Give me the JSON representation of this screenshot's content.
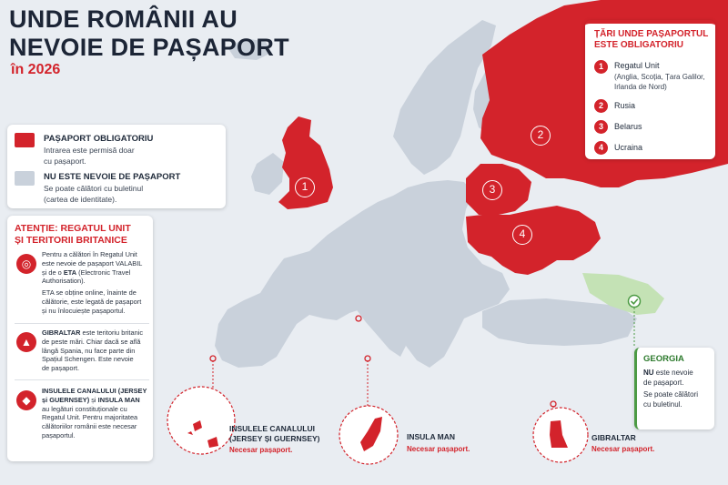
{
  "header": {
    "title_line1": "UNDE ROMÂNII AU",
    "title_line2": "NEVOIE DE PAȘAPORT",
    "year": "în 2026"
  },
  "colors": {
    "red": "#d3232b",
    "grey_land": "#c9d1db",
    "sea": "#e9edf2",
    "green": "#4c9a44"
  },
  "legend": {
    "required_title": "PAȘAPORT OBLIGATORIU",
    "required_desc_line1": "Intrarea este permisă doar",
    "required_desc_line2": "cu pașaport.",
    "not_needed_title": "NU ESTE NEVOIE DE PAȘAPORT",
    "not_needed_desc_line1": "Se poate călători cu buletinul",
    "not_needed_desc_line2": "(cartea de identitate)."
  },
  "attention": {
    "title_line1": "ATENȚIE: REGATUL UNIT",
    "title_line2": "ȘI TERITORII BRITANICE",
    "uk_icon": "passport-globe-icon",
    "uk_p1_line1": "Pentru a călători în Regatul Unit",
    "uk_p1_line2": "este nevoie de pașaport VALABIL",
    "uk_p1_line3": "și de o",
    "uk_p1_eta": "ETA",
    "uk_p1_line3b": "(Electronic Travel",
    "uk_p1_line4": "Authorisation).",
    "uk_p2_line1": "ETA se obține online, înainte de",
    "uk_p2_line2": "călătorie, este legată de pașaport",
    "uk_p2_line3": "și nu înlocuiește pașaportul.",
    "gib_icon": "rock-icon",
    "gib_bold": "GIBRALTAR",
    "gib_line1": "este teritoriu britanic",
    "gib_line2": "de peste mări. Chiar dacă se află",
    "gib_line3": "lângă Spania, nu face parte din",
    "gib_line4": "Spațiul Schengen. Este nevoie",
    "gib_line5": "de pașaport.",
    "ch_icon": "island-icon",
    "ch_bold1": "INSULELE CANALULUI (JERSEY",
    "ch_bold2": "și GUERNSEY)",
    "ch_and": "și",
    "ch_bold3": "INSULA MAN",
    "ch_line3": "au legături constituționale cu",
    "ch_line4": "Regatul Unit. Pentru majoritatea",
    "ch_line5": "călătoriilor românii este necesar",
    "ch_line6": "pașaportul."
  },
  "countries_panel": {
    "title_line1": "ȚĂRI UNDE PAȘAPORTUL",
    "title_line2": "ESTE OBLIGATORIU",
    "items": [
      {
        "num": "1",
        "name": "Regatul Unit",
        "sub1": "(Anglia, Scoția, Țara Galilor,",
        "sub2": "Irlanda de Nord)"
      },
      {
        "num": "2",
        "name": "Rusia"
      },
      {
        "num": "3",
        "name": "Belarus"
      },
      {
        "num": "4",
        "name": "Ucraina"
      }
    ]
  },
  "map_labels": {
    "uk": "1",
    "russia": "2",
    "belarus": "3",
    "ukraine": "4"
  },
  "georgia": {
    "title": "GEORGIA",
    "nu": "NU",
    "line1": "este nevoie",
    "line2": "de pașaport.",
    "line3": "Se poate călători",
    "line4": "cu buletinul.",
    "icon": "check-icon"
  },
  "insets": {
    "channel_line1": "INSULELE CANALULUI",
    "channel_line2": "(JERSEY ȘI GUERNSEY)",
    "channel_sub": "Necesar pașaport.",
    "man_title": "INSULA MAN",
    "man_sub": "Necesar pașaport.",
    "gib_title": "GIBRALTAR",
    "gib_sub": "Necesar pașaport."
  }
}
